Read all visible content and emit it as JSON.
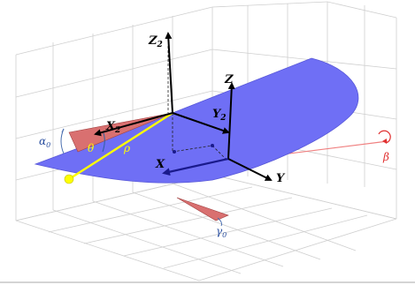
{
  "labels": {
    "z2": "Z",
    "z2_sub": "2",
    "z": "Z",
    "x2": "X",
    "x2_sub": "2",
    "y2": "Y",
    "y2_sub": "2",
    "x": "X",
    "y": "Y",
    "alpha": "α",
    "alpha_sub": "0",
    "theta": "θ",
    "rho": "ρ",
    "beta": "β",
    "gamma": "γ",
    "gamma_sub": "0"
  },
  "colors": {
    "surface": "#6f6ff5",
    "wedge": "#d97070",
    "rho_line": "#ffff00",
    "red_axis": "#f08080",
    "angle_mark_blue": "#4a6fb0",
    "beta_red": "#e03030",
    "grid": "#cccccc"
  }
}
